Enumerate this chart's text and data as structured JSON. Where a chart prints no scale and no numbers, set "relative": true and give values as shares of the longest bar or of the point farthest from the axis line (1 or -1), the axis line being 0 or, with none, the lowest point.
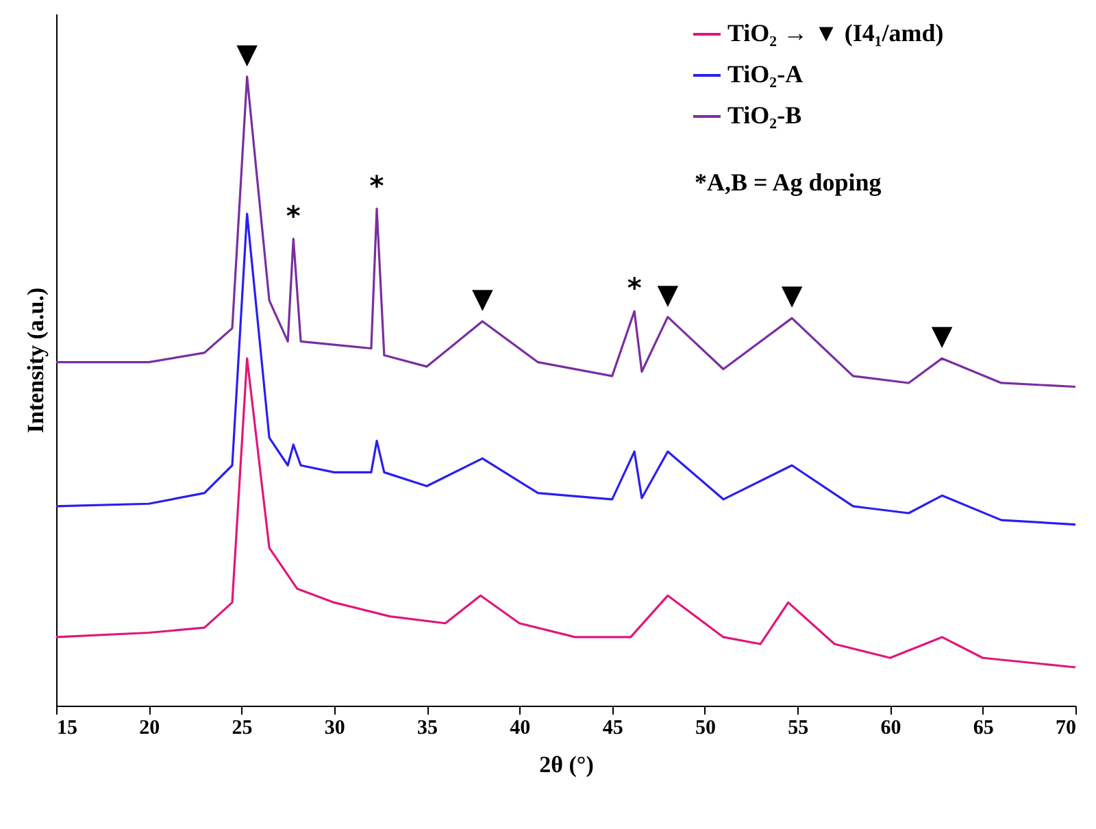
{
  "chart_data": {
    "type": "line",
    "relative": true,
    "xlabel": "2θ (°)",
    "ylabel": "Intensity (a.u.)",
    "xlim": [
      15,
      70
    ],
    "xticks": [
      15,
      20,
      25,
      30,
      35,
      40,
      45,
      50,
      55,
      60,
      65,
      70
    ],
    "grid": false,
    "legend": "top right",
    "marker": "none",
    "line_style": "solid",
    "series": [
      {
        "name": "TiO₂ → ▼ (I4₁/amd)",
        "color": "#e0177a",
        "x": [
          15,
          20,
          23,
          24.5,
          25.3,
          26.5,
          28,
          30,
          33,
          36,
          37.9,
          40,
          43,
          46,
          48,
          51,
          53,
          54.5,
          57,
          60,
          62.8,
          65,
          70
        ],
        "values": [
          0.109,
          0.116,
          0.124,
          0.164,
          0.552,
          0.251,
          0.186,
          0.164,
          0.142,
          0.131,
          0.175,
          0.131,
          0.109,
          0.109,
          0.175,
          0.109,
          0.098,
          0.164,
          0.098,
          0.076,
          0.109,
          0.076,
          0.061
        ]
      },
      {
        "name": "TiO₂-A",
        "color": "#2a1ff0",
        "x": [
          15,
          20,
          23,
          24.5,
          25.3,
          26.5,
          27.5,
          27.8,
          28.2,
          30,
          32,
          32.3,
          32.7,
          35,
          38,
          41,
          45,
          46.2,
          46.6,
          48,
          51,
          54.7,
          58,
          61,
          62.8,
          66,
          70
        ],
        "values": [
          0.317,
          0.321,
          0.338,
          0.382,
          0.782,
          0.426,
          0.382,
          0.415,
          0.382,
          0.371,
          0.371,
          0.421,
          0.371,
          0.349,
          0.393,
          0.338,
          0.328,
          0.404,
          0.33,
          0.404,
          0.328,
          0.382,
          0.317,
          0.306,
          0.334,
          0.295,
          0.288
        ]
      },
      {
        "name": "TiO₂-B",
        "color": "#7a2ea0",
        "x": [
          15,
          20,
          23,
          24.5,
          25.3,
          26.5,
          27.5,
          27.8,
          28.2,
          32,
          32.3,
          32.7,
          35,
          38,
          41,
          45,
          46.2,
          46.6,
          48,
          51,
          54.7,
          58,
          61,
          62.8,
          66,
          70
        ],
        "values": [
          0.546,
          0.546,
          0.561,
          0.6,
          1,
          0.644,
          0.579,
          0.742,
          0.579,
          0.568,
          0.79,
          0.557,
          0.539,
          0.611,
          0.546,
          0.524,
          0.627,
          0.531,
          0.618,
          0.535,
          0.616,
          0.524,
          0.513,
          0.552,
          0.513,
          0.507
        ]
      }
    ],
    "annotations": [
      {
        "text": "▼",
        "x": 25.3,
        "y": 1
      },
      {
        "text": "▼",
        "x": 38,
        "y": 0.611
      },
      {
        "text": "▼",
        "x": 48,
        "y": 0.618
      },
      {
        "text": "▼",
        "x": 54.7,
        "y": 0.616
      },
      {
        "text": "▼",
        "x": 62.8,
        "y": 0.552
      },
      {
        "text": "*",
        "x": 27.8,
        "y": 0.742
      },
      {
        "text": "*",
        "x": 32.3,
        "y": 0.79
      },
      {
        "text": "*",
        "x": 46.2,
        "y": 0.627
      },
      "*A,B = Ag doping"
    ]
  }
}
